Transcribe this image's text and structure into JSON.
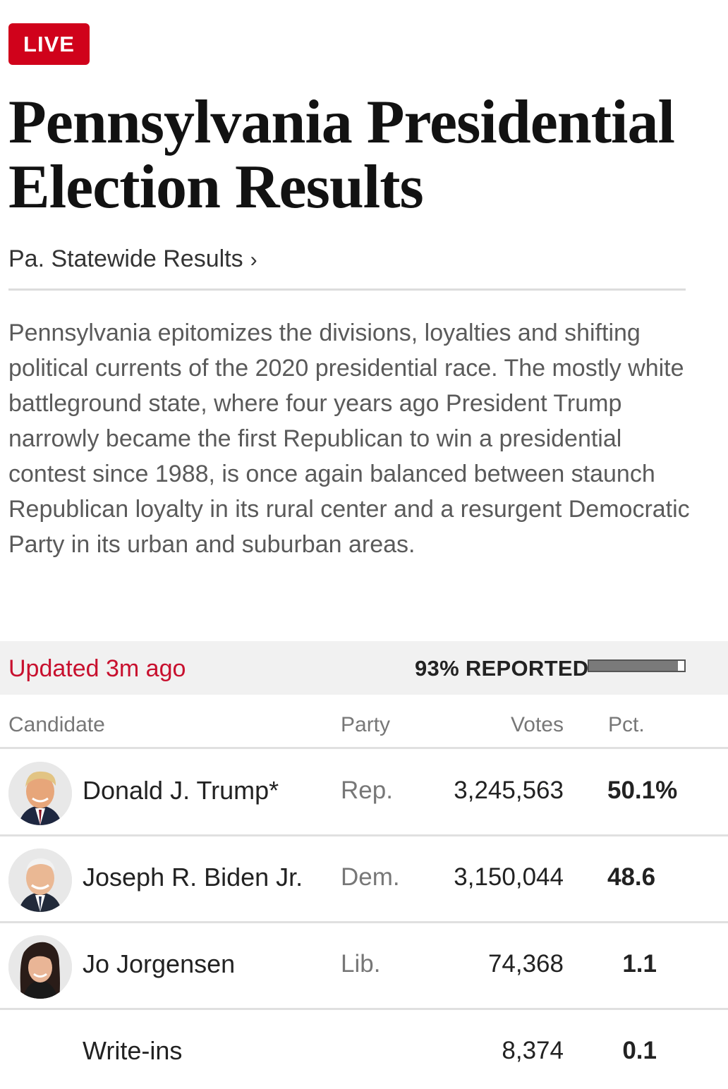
{
  "badge": "LIVE",
  "title": "Pennsylvania Presidential Election Results",
  "statewide_link": "Pa. Statewide Results",
  "statewide_chevron": "›",
  "summary": "Pennsylvania epitomizes the divisions, loyalties and shifting political currents of the 2020 presidential race. The mostly white battleground state, where four years ago President Trump narrowly became the first Republican to win a presidential contest since 1988, is once again balanced between staunch Republican loyalty in its rural center and a resurgent Democratic Party in its urban and suburban areas.",
  "status": {
    "updated": "Updated 3m ago",
    "reported_label": "93% REPORTED",
    "reported_fraction": 0.93
  },
  "table": {
    "headers": {
      "candidate": "Candidate",
      "party": "Party",
      "votes": "Votes",
      "pct": "Pct."
    },
    "rows": [
      {
        "name": "Donald J. Trump*",
        "party": "Rep.",
        "votes": "3,245,563",
        "pct": "50.1%",
        "avatar": "trump-photo"
      },
      {
        "name": "Joseph R. Biden Jr.",
        "party": "Dem.",
        "votes": "3,150,044",
        "pct": "48.6",
        "avatar": "biden-photo"
      },
      {
        "name": "Jo Jorgensen",
        "party": "Lib.",
        "votes": "74,368",
        "pct": "1.1",
        "avatar": "jorgensen-photo"
      },
      {
        "name": "Write-ins",
        "party": "",
        "votes": "8,374",
        "pct": "0.1"
      }
    ]
  },
  "colors": {
    "live_red": "#d0021b",
    "updated_red": "#c8102e"
  }
}
